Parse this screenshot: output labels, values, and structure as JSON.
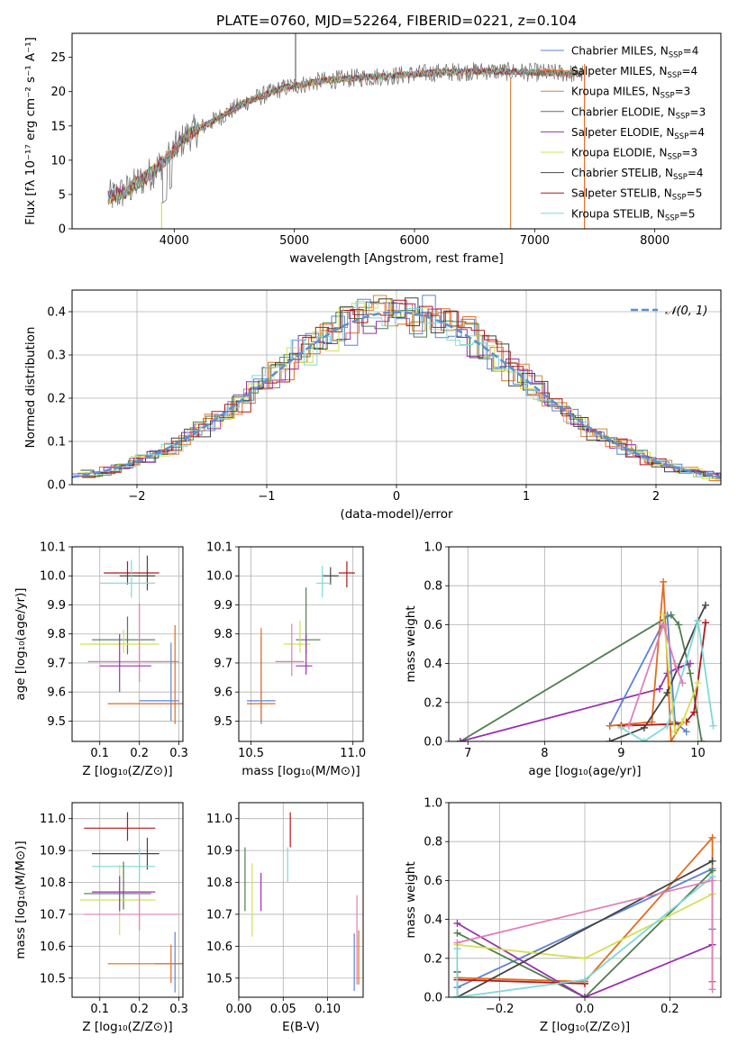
{
  "chart_data": [
    {
      "id": "spectrum",
      "type": "line",
      "title": "PLATE=0760, MJD=52264, FIBERID=0221, z=0.104",
      "xlabel": "wavelength [Angstrom, rest frame]",
      "ylabel": "Flux [fλ 10⁻¹⁷ erg cm⁻² s⁻¹ A⁻¹]",
      "xlim": [
        3150,
        8550
      ],
      "ylim": [
        0,
        28.5
      ],
      "xticks": [
        4000,
        5000,
        6000,
        7000,
        8000
      ],
      "yticks": [
        0,
        5,
        10,
        15,
        20,
        25
      ],
      "grid": false,
      "legend_position": "right",
      "continuum_shape": {
        "x": [
          3450,
          3600,
          3800,
          3950,
          4100,
          4300,
          4600,
          4900,
          5200,
          5500,
          5800,
          6200,
          6600,
          7000,
          7400
        ],
        "y": [
          4.5,
          5.5,
          8.0,
          10.5,
          13.5,
          15.5,
          18.5,
          20.5,
          21.5,
          22.0,
          22.3,
          22.8,
          23.0,
          22.8,
          22.6
        ]
      },
      "series": [
        {
          "name": "Chabrier MILES, N",
          "sub": "SSP",
          "suffix": "=4",
          "color": "#5b83d6"
        },
        {
          "name": "Salpeter MILES, N",
          "sub": "SSP",
          "suffix": "=4",
          "color": "#e26b1e"
        },
        {
          "name": "Kroupa MILES, N",
          "sub": "SSP",
          "suffix": "=3",
          "color": "#d4843a"
        },
        {
          "name": "Chabrier ELODIE, N",
          "sub": "SSP",
          "suffix": "=3",
          "color": "#4e7e4e"
        },
        {
          "name": "Salpeter ELODIE, N",
          "sub": "SSP",
          "suffix": "=4",
          "color": "#9a30b0"
        },
        {
          "name": "Kroupa ELODIE, N",
          "sub": "SSP",
          "suffix": "=3",
          "color": "#d4e050"
        },
        {
          "name": "Chabrier STELIB, N",
          "sub": "SSP",
          "suffix": "=4",
          "color": "#444444"
        },
        {
          "name": "Salpeter STELIB, N",
          "sub": "SSP",
          "suffix": "=5",
          "color": "#b01818"
        },
        {
          "name": "Kroupa STELIB, N",
          "sub": "SSP",
          "suffix": "=5",
          "color": "#7fd8d8"
        }
      ]
    },
    {
      "id": "residuals",
      "type": "histogram",
      "xlabel": "(data-model)/error",
      "ylabel": "Normed distribution",
      "xlim": [
        -2.5,
        2.5
      ],
      "ylim": [
        0,
        0.45
      ],
      "xticks": [
        -2,
        -1,
        0,
        1,
        2
      ],
      "yticks": [
        0.0,
        0.1,
        0.2,
        0.3,
        0.4
      ],
      "grid": true,
      "legend": "𝒩(0, 1)",
      "legend_position": "top-right",
      "reference_curve": "normal(0,1)",
      "reference_color": "#5b8fd6"
    },
    {
      "id": "age-vs-Z",
      "type": "errorbar",
      "xlabel": "Z [log₁₀(Z/Z⊙)]",
      "ylabel": "age  [log₁₀(age/yr)]",
      "xlim": [
        0.03,
        0.31
      ],
      "ylim": [
        9.43,
        10.1
      ],
      "xticks": [
        0.1,
        0.2,
        0.3
      ],
      "yticks": [
        9.5,
        9.6,
        9.7,
        9.8,
        9.9,
        10.0,
        10.1
      ],
      "grid": true,
      "points": [
        {
          "x": 0.17,
          "y": 10.01,
          "xerr": [
            0.06,
            0.08
          ],
          "yerr": [
            0.04,
            0.04
          ],
          "color": "#b01818"
        },
        {
          "x": 0.22,
          "y": 10.0,
          "xerr": [
            0.07,
            0.02
          ],
          "yerr": [
            0.05,
            0.07
          ],
          "color": "#444444"
        },
        {
          "x": 0.18,
          "y": 9.975,
          "xerr": [
            0.08,
            0.06
          ],
          "yerr": [
            0.05,
            0.08
          ],
          "color": "#7fd8d8"
        },
        {
          "x": 0.17,
          "y": 9.78,
          "xerr": [
            0.09,
            0.07
          ],
          "yerr": [
            0.05,
            0.08
          ],
          "color": "#4e7e4e"
        },
        {
          "x": 0.16,
          "y": 9.765,
          "xerr": [
            0.11,
            0.09
          ],
          "yerr": [
            0.03,
            0.05
          ],
          "color": "#d4e050"
        },
        {
          "x": 0.2,
          "y": 9.705,
          "xerr": [
            0.13,
            0.1
          ],
          "yerr": [
            0.07,
            0.2
          ],
          "color": "#e07fb8"
        },
        {
          "x": 0.15,
          "y": 9.69,
          "xerr": [
            0.05,
            0.08
          ],
          "yerr": [
            0.09,
            0.11
          ],
          "color": "#9a30b0"
        },
        {
          "x": 0.28,
          "y": 9.57,
          "xerr": [
            0.08,
            0.02
          ],
          "yerr": [
            0.07,
            0.2
          ],
          "color": "#5b83d6"
        },
        {
          "x": 0.29,
          "y": 9.56,
          "xerr": [
            0.17,
            0.02
          ],
          "yerr": [
            0.07,
            0.27
          ],
          "color": "#e26b1e"
        }
      ]
    },
    {
      "id": "age-vs-mass",
      "type": "errorbar",
      "xlabel": "mass [log₁₀(M/M⊙)]",
      "ylabel": "",
      "xlim": [
        10.44,
        11.05
      ],
      "ylim": [
        9.43,
        10.1
      ],
      "xticks": [
        10.5,
        11.0
      ],
      "yticks": [
        9.5,
        9.6,
        9.7,
        9.8,
        9.9,
        10.0,
        10.1
      ],
      "grid": true,
      "points": [
        {
          "x": 10.97,
          "y": 10.01,
          "xerr": [
            0.04,
            0.04
          ],
          "yerr": [
            0.05,
            0.04
          ],
          "color": "#b01818"
        },
        {
          "x": 10.89,
          "y": 10.0,
          "xerr": [
            0.04,
            0.04
          ],
          "yerr": [
            0.03,
            0.03
          ],
          "color": "#444444"
        },
        {
          "x": 10.85,
          "y": 9.975,
          "xerr": [
            0.03,
            0.04
          ],
          "yerr": [
            0.05,
            0.06
          ],
          "color": "#7fd8d8"
        },
        {
          "x": 10.77,
          "y": 9.78,
          "xerr": [
            0.05,
            0.07
          ],
          "yerr": [
            0.05,
            0.18
          ],
          "color": "#4e7e4e"
        },
        {
          "x": 10.74,
          "y": 9.765,
          "xerr": [
            0.08,
            0.05
          ],
          "yerr": [
            0.03,
            0.08
          ],
          "color": "#d4e050"
        },
        {
          "x": 10.7,
          "y": 9.705,
          "xerr": [
            0.08,
            0.06
          ],
          "yerr": [
            0.05,
            0.13
          ],
          "color": "#e07fb8"
        },
        {
          "x": 10.77,
          "y": 9.69,
          "xerr": [
            0.05,
            0.03
          ],
          "yerr": [
            0.03,
            0.11
          ],
          "color": "#9a30b0"
        },
        {
          "x": 10.55,
          "y": 9.57,
          "xerr": [
            0.07,
            0.07
          ],
          "yerr": [
            0.08,
            0.22
          ],
          "color": "#5b83d6"
        },
        {
          "x": 10.55,
          "y": 9.56,
          "xerr": [
            0.07,
            0.07
          ],
          "yerr": [
            0.06,
            0.26
          ],
          "color": "#e26b1e"
        }
      ]
    },
    {
      "id": "weight-vs-age",
      "type": "line",
      "xlabel": "age  [log₁₀(age/yr)]",
      "ylabel": "mass weight",
      "xlim": [
        6.75,
        10.3
      ],
      "ylim": [
        0,
        1.0
      ],
      "xticks": [
        7,
        8,
        9,
        10
      ],
      "yticks": [
        0.0,
        0.2,
        0.4,
        0.6,
        0.8,
        1.0
      ],
      "grid": true,
      "series": [
        {
          "color": "#4e7e4e",
          "x": [
            6.9,
            9.65,
            9.75,
            9.9,
            10.05
          ],
          "y": [
            0.0,
            0.65,
            0.6,
            0.35,
            0.0
          ]
        },
        {
          "color": "#9a30b0",
          "x": [
            6.9,
            9.5,
            9.6,
            9.75,
            9.9
          ],
          "y": [
            0.0,
            0.27,
            0.35,
            0.38,
            0.4
          ]
        },
        {
          "color": "#5b83d6",
          "x": [
            8.85,
            9.6,
            9.7,
            9.85
          ],
          "y": [
            0.08,
            0.65,
            0.1,
            0.05
          ]
        },
        {
          "color": "#e26b1e",
          "x": [
            8.85,
            9.4,
            9.55,
            9.65,
            9.8
          ],
          "y": [
            0.08,
            0.1,
            0.82,
            0.0,
            0.1
          ]
        },
        {
          "color": "#444444",
          "x": [
            8.85,
            9.3,
            9.6,
            10.0,
            10.1
          ],
          "y": [
            0.0,
            0.07,
            0.25,
            0.62,
            0.7
          ]
        },
        {
          "color": "#b01818",
          "x": [
            9.0,
            9.7,
            9.85,
            9.95,
            10.1
          ],
          "y": [
            0.08,
            0.09,
            0.1,
            0.15,
            0.61
          ]
        },
        {
          "color": "#7fd8d8",
          "x": [
            9.0,
            9.3,
            9.6,
            10.0,
            10.2
          ],
          "y": [
            0.07,
            0.0,
            0.08,
            0.62,
            0.08
          ]
        },
        {
          "color": "#d4e050",
          "x": [
            9.55,
            9.7,
            9.8,
            10.0
          ],
          "y": [
            0.65,
            0.05,
            0.1,
            0.3
          ]
        },
        {
          "color": "#e07fb8",
          "x": [
            9.1,
            9.55,
            9.7,
            9.8
          ],
          "y": [
            0.08,
            0.6,
            0.4,
            0.3
          ]
        }
      ]
    },
    {
      "id": "mass-vs-Z",
      "type": "errorbar",
      "xlabel": "Z [log₁₀(Z/Z⊙)]",
      "ylabel": "mass [log₁₀(M/M⊙)]",
      "xlim": [
        0.03,
        0.31
      ],
      "ylim": [
        10.44,
        11.05
      ],
      "xticks": [
        0.1,
        0.2,
        0.3
      ],
      "yticks": [
        10.5,
        10.6,
        10.7,
        10.8,
        10.9,
        11.0
      ],
      "grid": true,
      "points": [
        {
          "x": 0.17,
          "y": 10.97,
          "xerr": [
            0.11,
            0.07
          ],
          "yerr": [
            0.04,
            0.05
          ],
          "color": "#b01818"
        },
        {
          "x": 0.22,
          "y": 10.89,
          "xerr": [
            0.14,
            0.03
          ],
          "yerr": [
            0.05,
            0.05
          ],
          "color": "#444444"
        },
        {
          "x": 0.2,
          "y": 10.85,
          "xerr": [
            0.12,
            0.04
          ],
          "yerr": [
            0.05,
            0.06
          ],
          "color": "#7fd8d8"
        },
        {
          "x": 0.16,
          "y": 10.765,
          "xerr": [
            0.1,
            0.07
          ],
          "yerr": [
            0.05,
            0.1
          ],
          "color": "#4e7e4e"
        },
        {
          "x": 0.15,
          "y": 10.745,
          "xerr": [
            0.1,
            0.09
          ],
          "yerr": [
            0.11,
            0.11
          ],
          "color": "#d4e050"
        },
        {
          "x": 0.15,
          "y": 10.77,
          "xerr": [
            0.07,
            0.09
          ],
          "yerr": [
            0.06,
            0.05
          ],
          "color": "#9a30b0"
        },
        {
          "x": 0.2,
          "y": 10.7,
          "xerr": [
            0.14,
            0.1
          ],
          "yerr": [
            0.05,
            0.07
          ],
          "color": "#e07fb8"
        },
        {
          "x": 0.29,
          "y": 10.545,
          "xerr": [
            0.05,
            0.02
          ],
          "yerr": [
            0.09,
            0.1
          ],
          "color": "#5b83d6"
        },
        {
          "x": 0.28,
          "y": 10.545,
          "xerr": [
            0.16,
            0.03
          ],
          "yerr": [
            0.06,
            0.06
          ],
          "color": "#e26b1e"
        }
      ]
    },
    {
      "id": "mass-vs-EBV",
      "type": "errorbar",
      "xlabel": "E(B-V)",
      "ylabel": "",
      "xlim": [
        0.0,
        0.14
      ],
      "ylim": [
        10.44,
        11.05
      ],
      "xticks": [
        0.0,
        0.05,
        0.1
      ],
      "yticks": [
        10.5,
        10.6,
        10.7,
        10.8,
        10.9,
        11.0
      ],
      "grid": true,
      "points": [
        {
          "x": 0.058,
          "y": 10.97,
          "xerr": [
            0,
            0
          ],
          "yerr": [
            0.06,
            0.05
          ],
          "color": "#b01818"
        },
        {
          "x": 0.055,
          "y": 10.86,
          "xerr": [
            0,
            0
          ],
          "yerr": [
            0.06,
            0.05
          ],
          "color": "#7fd8d8"
        },
        {
          "x": 0.007,
          "y": 10.81,
          "xerr": [
            0,
            0
          ],
          "yerr": [
            0.1,
            0.1
          ],
          "color": "#4e7e4e"
        },
        {
          "x": 0.015,
          "y": 10.74,
          "xerr": [
            0,
            0
          ],
          "yerr": [
            0.11,
            0.12
          ],
          "color": "#d4e050"
        },
        {
          "x": 0.025,
          "y": 10.75,
          "xerr": [
            0,
            0
          ],
          "yerr": [
            0.04,
            0.08
          ],
          "color": "#9a30b0"
        },
        {
          "x": 0.13,
          "y": 10.55,
          "xerr": [
            0,
            0
          ],
          "yerr": [
            0.09,
            0.09
          ],
          "color": "#5b83d6"
        },
        {
          "x": 0.135,
          "y": 10.58,
          "xerr": [
            0,
            0
          ],
          "yerr": [
            0.1,
            0.07
          ],
          "color": "#e26b1e"
        },
        {
          "x": 0.133,
          "y": 10.66,
          "xerr": [
            0,
            0
          ],
          "yerr": [
            0.18,
            0.1
          ],
          "color": "#e07fb8"
        }
      ]
    },
    {
      "id": "weight-vs-Z",
      "type": "line",
      "xlabel": "Z [log₁₀(Z/Z⊙)]",
      "ylabel": "mass weight",
      "xlim": [
        -0.32,
        0.32
      ],
      "ylim": [
        0,
        1.0
      ],
      "xticks": [
        -0.2,
        0.0,
        0.2
      ],
      "yticks": [
        0.0,
        0.2,
        0.4,
        0.6,
        0.8,
        1.0
      ],
      "grid": true,
      "series": [
        {
          "color": "#5b83d6",
          "x": [
            -0.3,
            0.3,
            0.3
          ],
          "y": [
            0.05,
            0.66,
            0.35
          ]
        },
        {
          "color": "#e26b1e",
          "x": [
            -0.3,
            0.0,
            0.3,
            0.3
          ],
          "y": [
            0.1,
            0.08,
            0.82,
            0.08
          ]
        },
        {
          "color": "#4e7e4e",
          "x": [
            -0.3,
            0.0,
            0.3
          ],
          "y": [
            0.33,
            0.0,
            0.65
          ]
        },
        {
          "color": "#9a30b0",
          "x": [
            -0.3,
            0.0,
            0.3
          ],
          "y": [
            0.38,
            0.0,
            0.27
          ]
        },
        {
          "color": "#d4e050",
          "x": [
            -0.3,
            0.0,
            0.3
          ],
          "y": [
            0.27,
            0.2,
            0.53
          ]
        },
        {
          "color": "#444444",
          "x": [
            -0.3,
            -0.3,
            0.3
          ],
          "y": [
            0.13,
            0.0,
            0.7
          ]
        },
        {
          "color": "#b01818",
          "x": [
            -0.3,
            0.0
          ],
          "y": [
            0.09,
            0.07
          ]
        },
        {
          "color": "#7fd8d8",
          "x": [
            -0.3,
            -0.3,
            0.0,
            0.3
          ],
          "y": [
            0.25,
            0.0,
            0.09,
            0.62
          ]
        },
        {
          "color": "#e07fb8",
          "x": [
            -0.3,
            0.3,
            0.3
          ],
          "y": [
            0.28,
            0.6,
            0.04
          ]
        }
      ]
    }
  ]
}
